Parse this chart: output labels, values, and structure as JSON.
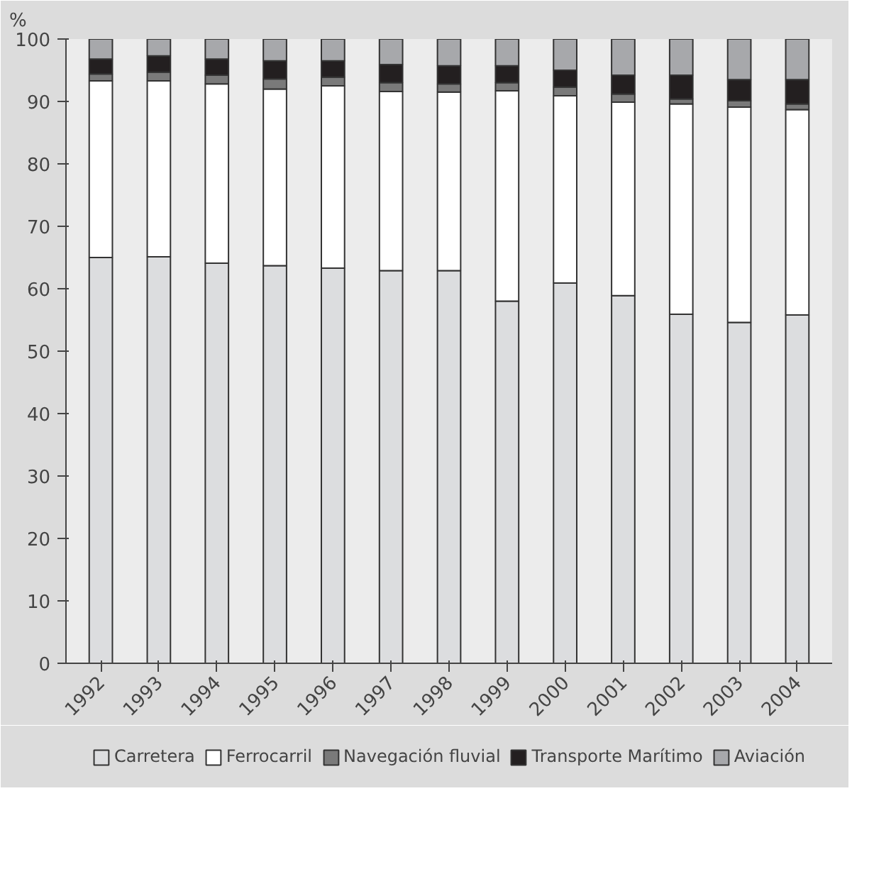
{
  "chart_data": {
    "type": "bar",
    "stacked": true,
    "ylabel": "%",
    "categories": [
      "1992",
      "1993",
      "1994",
      "1995",
      "1996",
      "1997",
      "1998",
      "1999",
      "2000",
      "2001",
      "2002",
      "2003",
      "2004"
    ],
    "series": [
      {
        "name": "Carretera",
        "color": "#dcdddf",
        "values": [
          65.0,
          65.1,
          64.1,
          63.7,
          63.3,
          62.9,
          62.9,
          58.0,
          60.9,
          58.9,
          55.9,
          54.6,
          55.8
        ]
      },
      {
        "name": "Ferrocarril",
        "color": "#ffffff",
        "values": [
          28.3,
          28.2,
          28.7,
          28.3,
          29.2,
          28.7,
          28.6,
          33.7,
          30.0,
          31.0,
          33.7,
          34.5,
          32.9
        ]
      },
      {
        "name": "Navegación fluvial",
        "color": "#7a7a7a",
        "values": [
          1.1,
          1.4,
          1.4,
          1.6,
          1.4,
          1.4,
          1.3,
          1.3,
          1.4,
          1.3,
          0.8,
          1.0,
          0.9
        ]
      },
      {
        "name": "Transporte Marítimo",
        "color": "#231f20",
        "values": [
          2.4,
          2.6,
          2.6,
          2.9,
          2.6,
          2.9,
          2.9,
          2.7,
          2.7,
          3.0,
          3.8,
          3.4,
          3.9
        ]
      },
      {
        "name": "Aviación",
        "color": "#a7a8ab",
        "values": [
          3.2,
          2.7,
          3.2,
          3.5,
          3.5,
          4.1,
          4.3,
          4.3,
          5.0,
          5.8,
          5.8,
          6.5,
          6.5
        ]
      }
    ],
    "ylim": [
      0,
      100
    ],
    "yticks": [
      0,
      10,
      20,
      30,
      40,
      50,
      60,
      70,
      80,
      90,
      100
    ],
    "grid": false,
    "legend": "bottom"
  }
}
